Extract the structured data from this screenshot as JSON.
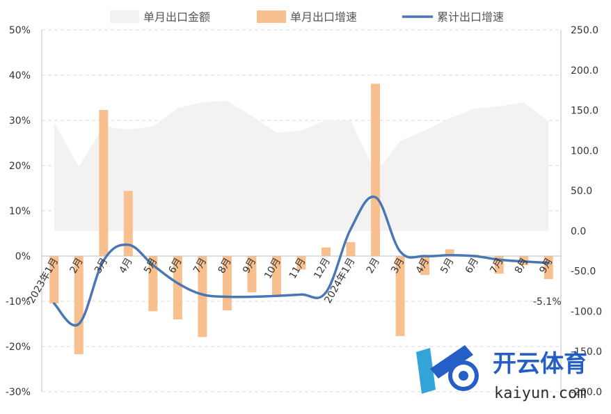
{
  "chart_data": {
    "type": "bar",
    "categories": [
      "2023年1月",
      "2月",
      "3月",
      "4月",
      "5月",
      "6月",
      "7月",
      "8月",
      "9月",
      "10月",
      "11月",
      "12月",
      "2024年1月",
      "2月",
      "3月",
      "4月",
      "5月",
      "6月",
      "7月",
      "8月",
      "9月"
    ],
    "series": [
      {
        "name": "单月出口金额",
        "kind": "area",
        "axis": "right",
        "color": "#f2f2f2",
        "values": [
          135,
          80,
          130,
          126,
          130,
          153,
          160,
          162,
          143,
          122,
          125,
          138,
          137,
          72,
          112,
          125,
          140,
          152,
          155,
          160,
          136
        ]
      },
      {
        "name": "单月出口增速",
        "kind": "bar",
        "axis": "left",
        "color": "#f9c08f",
        "values": [
          -10.5,
          -21.7,
          32.3,
          14.4,
          -12.2,
          -14.0,
          -17.9,
          -12.0,
          -8.0,
          -8.6,
          -3.0,
          1.9,
          3.1,
          38.1,
          -17.7,
          -4.2,
          1.5,
          0.3,
          -3.9,
          -2.0,
          -5.1
        ]
      },
      {
        "name": "累计出口增速",
        "kind": "line",
        "axis": "left",
        "color": "#4a77b4",
        "values": [
          -10.5,
          -15.0,
          -1.0,
          2.5,
          -2.0,
          -6.0,
          -8.5,
          -9.0,
          -9.0,
          -8.8,
          -8.5,
          -8.0,
          6.0,
          13.0,
          1.0,
          0.0,
          0.2,
          0.0,
          -0.8,
          -1.2,
          -1.5
        ]
      }
    ],
    "y_left": {
      "min": -30,
      "max": 50,
      "step": 10,
      "ticks": [
        "-30%",
        "-20%",
        "-10%",
        "0%",
        "10%",
        "20%",
        "30%",
        "40%",
        "50%"
      ]
    },
    "y_right": {
      "min": -200,
      "max": 250,
      "step": 50,
      "ticks": [
        "-200.0",
        "-150.0",
        "-100.0",
        "-50.0",
        "0.0",
        "50.0",
        "100.0",
        "150.0",
        "200.0",
        "250.0"
      ]
    },
    "annotation": "-5.1%",
    "legend_position": "top",
    "grid": "horizontal-dashed"
  },
  "watermark": {
    "brand_cn": "开云体育",
    "brand_en": "kaiyun.com"
  },
  "colors": {
    "area": "#f2f2f2",
    "bar": "#f9c08f",
    "line": "#4a77b4",
    "logo_blue": "#1a56c4"
  }
}
